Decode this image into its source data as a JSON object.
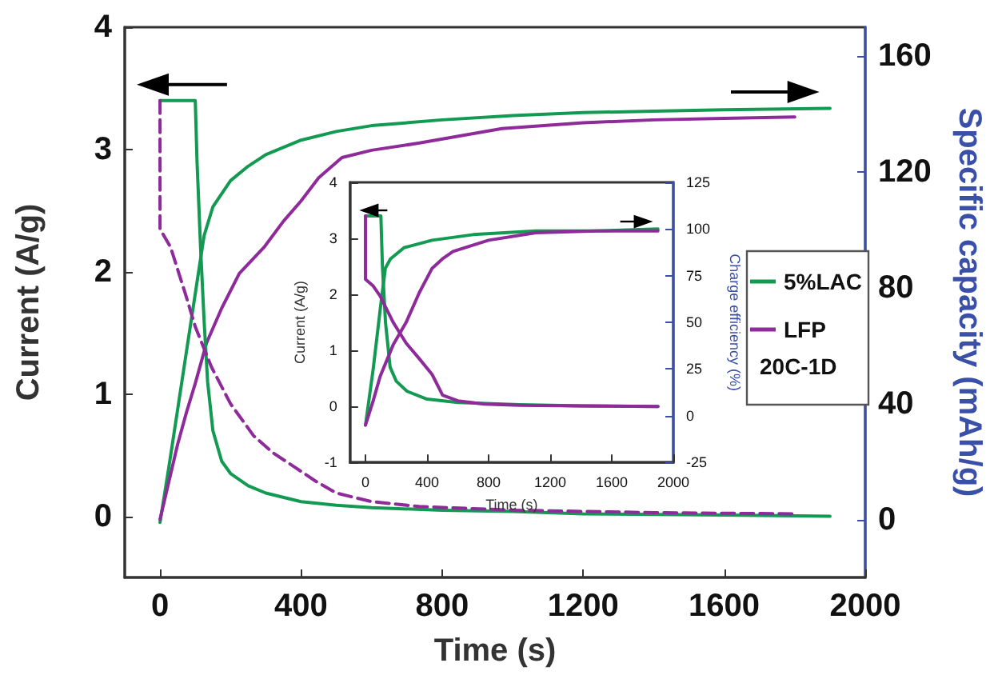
{
  "chart_data": [
    {
      "type": "line",
      "xlabel": "Time (s)",
      "ylabel": "Current (A/g)",
      "y2label": "Specific capacity (mAh/g)",
      "xlim": [
        -100,
        2000
      ],
      "xticks": [
        0,
        400,
        800,
        1200,
        1600,
        2000
      ],
      "ylim": [
        -0.5,
        4
      ],
      "yticks": [
        0,
        1,
        2,
        3,
        4
      ],
      "y2lim": [
        -20,
        170
      ],
      "y2ticks": [
        0,
        40,
        80,
        120,
        160
      ],
      "legend": "right",
      "legend_title": "20C-1D",
      "marker": "none",
      "series": [
        {
          "name": "5%LAC",
          "color": "#139a52",
          "axis": "y2",
          "line_style": "solid",
          "x": [
            0,
            25,
            50,
            75,
            100,
            125,
            150,
            200,
            250,
            300,
            400,
            500,
            600,
            800,
            1000,
            1200,
            1400,
            1600,
            1900
          ],
          "values": [
            -1,
            18,
            38,
            58,
            78,
            98,
            108,
            117,
            122,
            126,
            131,
            134,
            136,
            138,
            139.5,
            140.5,
            141,
            141.5,
            142
          ]
        },
        {
          "name": "LFP",
          "color": "#8e2a9a",
          "axis": "y2",
          "line_style": "solid",
          "x": [
            0,
            25,
            50,
            75,
            100,
            132,
            175,
            225,
            295,
            350,
            400,
            450,
            516,
            600,
            736,
            970,
            1200,
            1400,
            1600,
            1800
          ],
          "values": [
            0,
            13,
            26,
            37,
            47,
            61,
            73,
            85,
            94,
            103,
            110,
            118,
            125,
            127.5,
            130,
            135,
            137,
            138,
            138.5,
            139
          ]
        },
        {
          "color": "#139a52",
          "line_style": "solid",
          "x": [
            0,
            100,
            105,
            115,
            125,
            135,
            150,
            175,
            200,
            250,
            300,
            400,
            500,
            600,
            800,
            1000,
            1200,
            1600,
            1900
          ],
          "values": [
            3.4,
            3.4,
            2.9,
            2.2,
            1.6,
            1.1,
            0.7,
            0.45,
            0.35,
            0.25,
            0.19,
            0.12,
            0.09,
            0.07,
            0.05,
            0.04,
            0.02,
            0.01,
            0
          ]
        },
        {
          "color": "#8e2a9a",
          "line_style": "dashed",
          "x": [
            0,
            0,
            30,
            73,
            100,
            146,
            200,
            265,
            320,
            383,
            440,
            500,
            600,
            735,
            1000,
            1400,
            1800
          ],
          "values": [
            3.4,
            2.35,
            2.2,
            1.81,
            1.55,
            1.22,
            0.92,
            0.66,
            0.52,
            0.4,
            0.29,
            0.19,
            0.12,
            0.08,
            0.05,
            0.03,
            0.02
          ]
        }
      ]
    },
    {
      "type": "line",
      "xlabel": "Time (s)",
      "ylabel": "Current (A/g)",
      "y2label": "Charge efficiency (%)",
      "xlim": [
        -100,
        2000
      ],
      "xticks": [
        0,
        400,
        800,
        1200,
        1600,
        2000
      ],
      "ylim": [
        -1,
        4
      ],
      "yticks": [
        -1,
        0,
        1,
        2,
        3,
        4
      ],
      "y2lim": [
        -25,
        125
      ],
      "y2ticks": [
        -25,
        0,
        25,
        50,
        75,
        100,
        125
      ],
      "marker": "none",
      "series": [
        {
          "color": "#139a52",
          "x": [
            0,
            100,
            110,
            130,
            160,
            200,
            270,
            400,
            600,
            1000,
            1400,
            1900
          ],
          "values": [
            3.4,
            3.4,
            2.5,
            1.5,
            0.7,
            0.45,
            0.27,
            0.13,
            0.07,
            0.03,
            0.01,
            0
          ]
        },
        {
          "color": "#139a52",
          "axis": "y2",
          "x": [
            0,
            50,
            100,
            129,
            162,
            250,
            433,
            700,
            1107,
            1500,
            1900
          ],
          "values": [
            -5,
            25,
            60,
            79,
            84,
            90,
            94,
            97,
            99,
            99,
            100
          ]
        },
        {
          "color": "#8e2a9a",
          "x": [
            0,
            0,
            50,
            95,
            180,
            264,
            350,
            433,
            501,
            600,
            772,
            1000,
            1400,
            1900
          ],
          "values": [
            3.4,
            2.27,
            2.15,
            1.97,
            1.5,
            1.13,
            0.85,
            0.57,
            0.2,
            0.1,
            0.04,
            0.02,
            0.01,
            0
          ]
        },
        {
          "color": "#8e2a9a",
          "axis": "y2",
          "x": [
            0,
            50,
            95,
            180,
            264,
            350,
            433,
            500,
            569,
            800,
            1107,
            1500,
            1900
          ],
          "values": [
            -5,
            8,
            21,
            38,
            50,
            66,
            79,
            84,
            88,
            94,
            98,
            99,
            99
          ]
        }
      ]
    }
  ]
}
